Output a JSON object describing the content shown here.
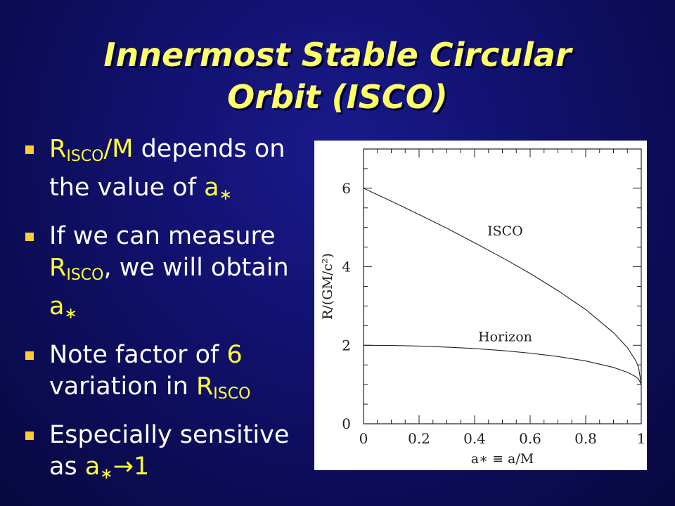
{
  "slide": {
    "title_line1": "Innermost Stable Circular",
    "title_line2": "Orbit (ISCO)"
  },
  "bullets": [
    {
      "parts": [
        {
          "t": "R",
          "c": "y"
        },
        {
          "t": "ISCO",
          "c": "y",
          "sub": true
        },
        {
          "t": "/M",
          "c": "y"
        },
        {
          "t": " depends on the value of "
        },
        {
          "t": "a",
          "c": "y"
        },
        {
          "t": "∗",
          "c": "y",
          "sub": true
        }
      ]
    },
    {
      "parts": [
        {
          "t": "If we can measure "
        },
        {
          "t": "R",
          "c": "y"
        },
        {
          "t": "ISCO",
          "c": "y",
          "sub": true
        },
        {
          "t": ", we will obtain "
        },
        {
          "t": "a",
          "c": "y"
        },
        {
          "t": "∗",
          "c": "y",
          "sub": true
        }
      ]
    },
    {
      "parts": [
        {
          "t": "Note factor of "
        },
        {
          "t": "6",
          "c": "y"
        },
        {
          "t": " variation in "
        },
        {
          "t": "R",
          "c": "y"
        },
        {
          "t": "ISCO",
          "c": "y",
          "sub": true
        }
      ]
    },
    {
      "parts": [
        {
          "t": "Especially sensitive as "
        },
        {
          "t": "a",
          "c": "y"
        },
        {
          "t": "∗",
          "c": "y",
          "sub": true
        },
        {
          "t": "→1",
          "c": "y"
        }
      ]
    }
  ],
  "chart_data": {
    "type": "line",
    "xlabel": "a∗ ≡ a/M",
    "ylabel": "R/(GM/c²)",
    "xlim": [
      0,
      1
    ],
    "ylim": [
      0,
      7
    ],
    "x_ticks": [
      "0",
      "0.2",
      "0.4",
      "0.6",
      "0.8",
      "1"
    ],
    "y_ticks": [
      "0",
      "2",
      "4",
      "6"
    ],
    "grid": false,
    "series": [
      {
        "name": "ISCO",
        "x": [
          0,
          0.1,
          0.2,
          0.3,
          0.4,
          0.5,
          0.6,
          0.7,
          0.8,
          0.9,
          0.95,
          0.98,
          0.99,
          1.0
        ],
        "y": [
          6.0,
          5.67,
          5.33,
          4.98,
          4.61,
          4.23,
          3.83,
          3.39,
          2.91,
          2.32,
          1.94,
          1.61,
          1.45,
          1.0
        ]
      },
      {
        "name": "Horizon",
        "x": [
          0,
          0.1,
          0.2,
          0.3,
          0.4,
          0.5,
          0.6,
          0.7,
          0.8,
          0.9,
          0.95,
          0.98,
          0.99,
          1.0
        ],
        "y": [
          2.0,
          1.995,
          1.98,
          1.954,
          1.917,
          1.866,
          1.8,
          1.714,
          1.6,
          1.436,
          1.312,
          1.199,
          1.141,
          1.0
        ]
      }
    ],
    "annotations": [
      {
        "text": "ISCO",
        "x": 0.51,
        "y": 4.8
      },
      {
        "text": "Horizon",
        "x": 0.51,
        "y": 2.1
      }
    ]
  }
}
